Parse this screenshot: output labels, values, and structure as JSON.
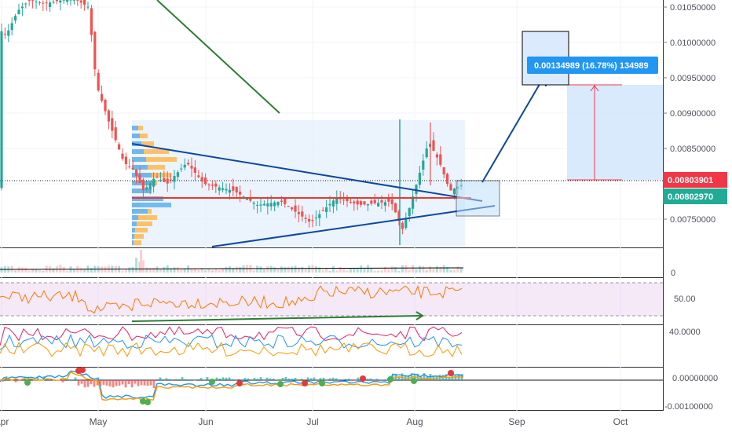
{
  "chart_data": {
    "type": "candlestick",
    "price_axis": {
      "ticks": [
        "0.01050000",
        "0.01000000",
        "0.00950000",
        "0.00900000",
        "0.00850000",
        "0.00800000",
        "0.00750000"
      ],
      "range": [
        0.007,
        0.01065
      ]
    },
    "price_tags": {
      "red": {
        "value": "0.00803901",
        "color": "#f23645"
      },
      "green": {
        "value": "0.00802970",
        "color": "#22ab94"
      }
    },
    "x_axis": {
      "labels": [
        "Apr",
        "May",
        "Jun",
        "Jul",
        "Aug",
        "Sep",
        "Oct"
      ]
    },
    "measure_label": "0.00134989 (16.78%) 134989",
    "volume_axis_label": "0",
    "rsi": {
      "label": "50.00",
      "bands": [
        30,
        70
      ]
    },
    "dmi_axis_label": "40.0000",
    "macd": {
      "labels": [
        "0.00000000",
        "-0.00100000"
      ]
    },
    "colors": {
      "up": "#26a69a",
      "down": "#ef5350",
      "trend": "#0d47a1",
      "poc": "#e53935",
      "rsi_line": "#f57c00",
      "rsi_fill": "#e1bee7"
    }
  }
}
